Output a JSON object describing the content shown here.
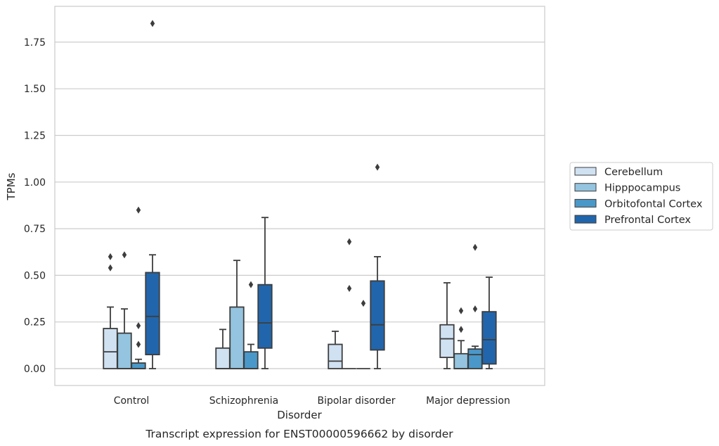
{
  "chart_data": {
    "type": "box",
    "caption": "Transcript expression for ENST00000596662 by disorder",
    "xlabel": "Disorder",
    "ylabel": "TPMs",
    "ylim": [
      -0.09,
      1.95
    ],
    "yticks": [
      "0.00",
      "0.25",
      "0.50",
      "0.75",
      "1.00",
      "1.25",
      "1.50",
      "1.75"
    ],
    "grid": true,
    "legend_position": "right",
    "categories": [
      "Control",
      "Schizophrenia",
      "Bipolar disorder",
      "Major depression"
    ],
    "series": [
      {
        "name": "Cerebellum",
        "color": "#d0e1f2",
        "boxes": [
          {
            "min": 0,
            "q1": 0,
            "median": 0.09,
            "q3": 0.215,
            "max": 0.33,
            "outliers": [
              0.54,
              0.6
            ]
          },
          {
            "min": 0,
            "q1": 0,
            "median": 0,
            "q3": 0.11,
            "max": 0.21,
            "outliers": []
          },
          {
            "min": 0,
            "q1": 0,
            "median": 0.04,
            "q3": 0.13,
            "max": 0.2,
            "outliers": []
          },
          {
            "min": 0,
            "q1": 0.06,
            "median": 0.16,
            "q3": 0.235,
            "max": 0.46,
            "outliers": []
          }
        ]
      },
      {
        "name": "Hipppocampus",
        "color": "#94c4df",
        "boxes": [
          {
            "min": 0,
            "q1": 0,
            "median": 0,
            "q3": 0.19,
            "max": 0.32,
            "outliers": [
              0.61
            ]
          },
          {
            "min": 0,
            "q1": 0,
            "median": 0,
            "q3": 0.33,
            "max": 0.58,
            "outliers": []
          },
          {
            "min": 0,
            "q1": 0,
            "median": 0,
            "q3": 0,
            "max": 0,
            "outliers": [
              0.43,
              0.68
            ]
          },
          {
            "min": 0,
            "q1": 0,
            "median": 0,
            "q3": 0.08,
            "max": 0.15,
            "outliers": [
              0.21,
              0.31
            ]
          }
        ]
      },
      {
        "name": "Orbitofontal Cortex",
        "color": "#4a98c9",
        "boxes": [
          {
            "min": 0,
            "q1": 0,
            "median": 0,
            "q3": 0.03,
            "max": 0.05,
            "outliers": [
              0.13,
              0.23,
              0.85
            ]
          },
          {
            "min": 0,
            "q1": 0,
            "median": 0,
            "q3": 0.09,
            "max": 0.13,
            "outliers": [
              0.45
            ]
          },
          {
            "min": 0,
            "q1": 0,
            "median": 0,
            "q3": 0,
            "max": 0,
            "outliers": [
              0.35
            ]
          },
          {
            "min": 0,
            "q1": 0,
            "median": 0.075,
            "q3": 0.105,
            "max": 0.12,
            "outliers": [
              0.32,
              0.65
            ]
          }
        ]
      },
      {
        "name": "Prefrontal Cortex",
        "color": "#2166ac",
        "boxes": [
          {
            "min": 0,
            "q1": 0.075,
            "median": 0.28,
            "q3": 0.515,
            "max": 0.61,
            "outliers": [
              1.85
            ]
          },
          {
            "min": 0,
            "q1": 0.11,
            "median": 0.245,
            "q3": 0.45,
            "max": 0.81,
            "outliers": []
          },
          {
            "min": 0,
            "q1": 0.1,
            "median": 0.235,
            "q3": 0.47,
            "max": 0.6,
            "outliers": [
              1.08
            ]
          },
          {
            "min": 0,
            "q1": 0.025,
            "median": 0.155,
            "q3": 0.305,
            "max": 0.49,
            "outliers": []
          }
        ]
      }
    ]
  }
}
